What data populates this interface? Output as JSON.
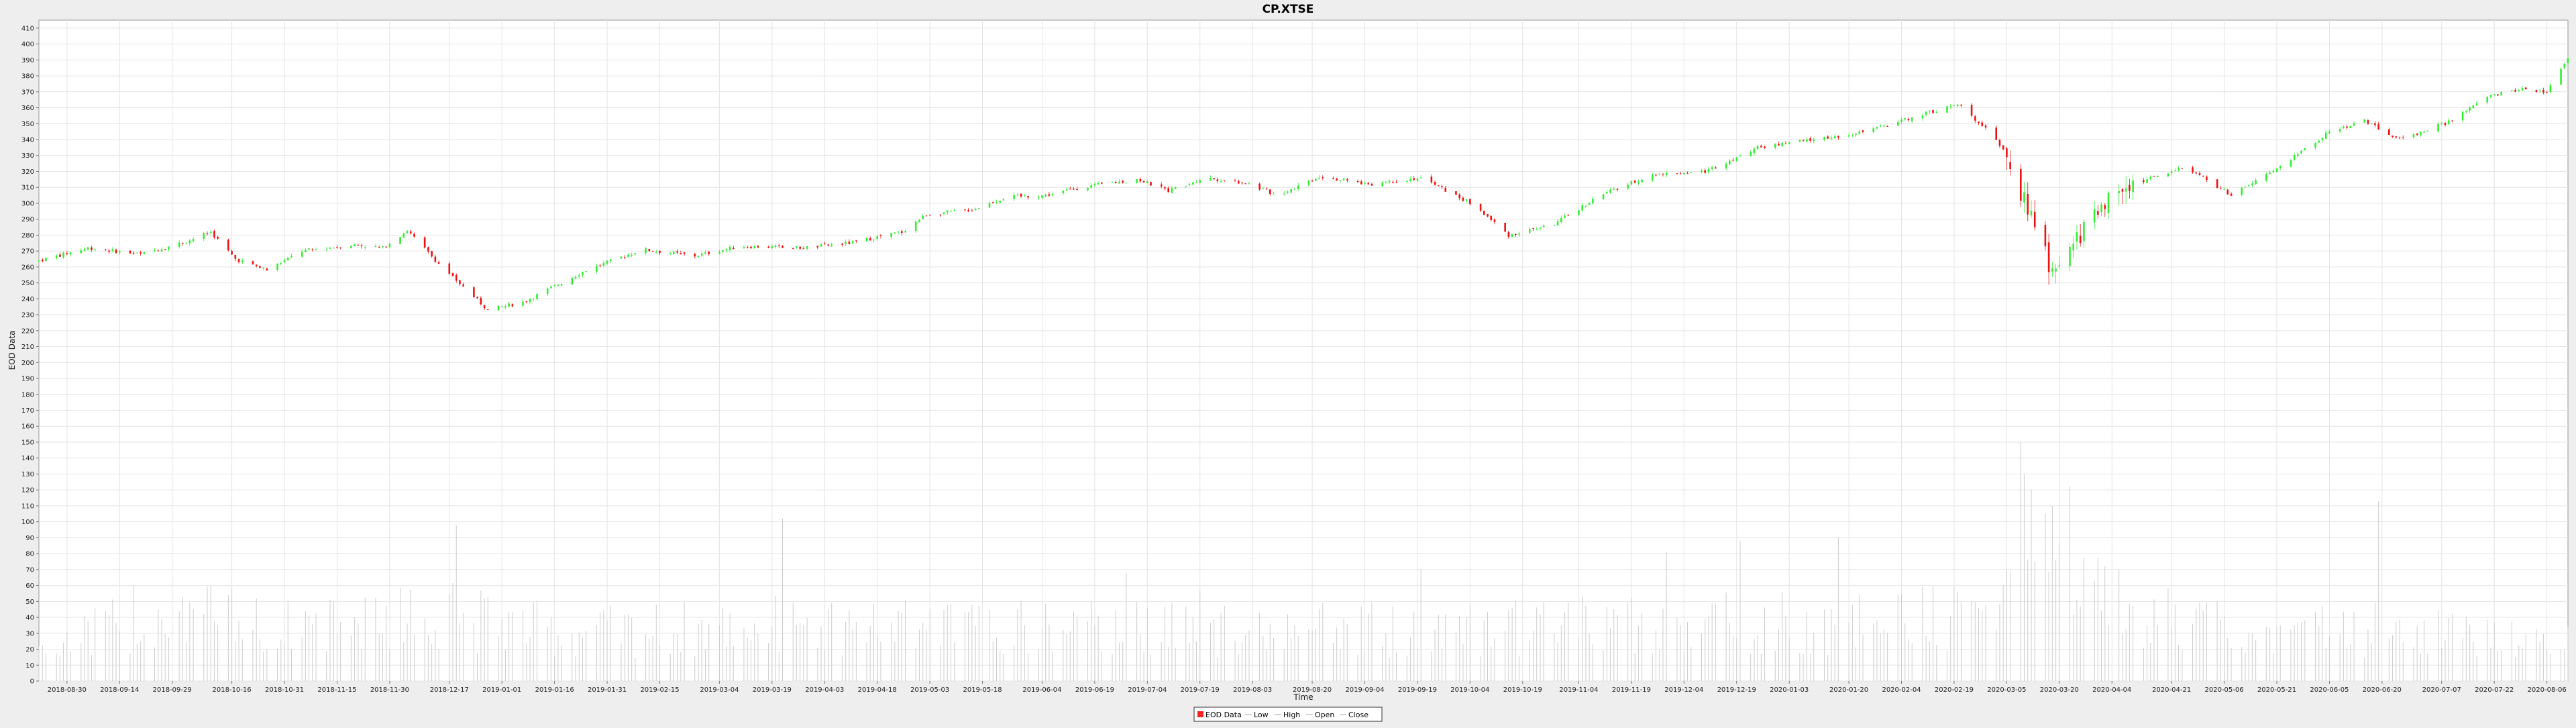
{
  "chart_data": {
    "type": "candlestick",
    "title": "CP.XTSE",
    "xlabel": "Time",
    "ylabel": "EOD Data",
    "ylim": [
      0,
      415
    ],
    "y_tick_step": 10,
    "grid": true,
    "legend_position": "bottom-center",
    "legend": [
      "EOD Data",
      "Low",
      "High",
      "Open",
      "Close"
    ],
    "colors": {
      "up": "#33ee33",
      "down": "#ee1111",
      "volume": "#cccccc",
      "grid": "#e4e4e4",
      "plot_bg": "#ffffff",
      "legend_marker": "#ff2222"
    },
    "x_range": [
      "2018-08-22",
      "2020-08-12"
    ],
    "x_tick_labels": [
      "2018-08-30",
      "2018-09-14",
      "2018-09-29",
      "2018-10-16",
      "2018-10-31",
      "2018-11-15",
      "2018-11-30",
      "2018-12-17",
      "2019-01-01",
      "2019-01-16",
      "2019-01-31",
      "2019-02-15",
      "2019-03-04",
      "2019-03-19",
      "2019-04-03",
      "2019-04-18",
      "2019-05-03",
      "2019-05-18",
      "2019-06-04",
      "2019-06-19",
      "2019-07-04",
      "2019-07-19",
      "2019-08-03",
      "2019-08-20",
      "2019-09-04",
      "2019-09-19",
      "2019-10-04",
      "2019-10-19",
      "2019-11-04",
      "2019-11-19",
      "2019-12-04",
      "2019-12-19",
      "2020-01-03",
      "2020-01-20",
      "2020-02-04",
      "2020-02-19",
      "2020-03-05",
      "2020-03-20",
      "2020-04-04",
      "2020-04-21",
      "2020-05-06",
      "2020-05-21",
      "2020-06-05",
      "2020-06-20",
      "2020-07-07",
      "2020-07-22",
      "2020-08-06"
    ],
    "close_anchors": [
      [
        "2018-08-22",
        264
      ],
      [
        "2018-09-05",
        272
      ],
      [
        "2018-09-20",
        268
      ],
      [
        "2018-10-03",
        276
      ],
      [
        "2018-10-10",
        282
      ],
      [
        "2018-10-17",
        265
      ],
      [
        "2018-10-26",
        258
      ],
      [
        "2018-11-05",
        270
      ],
      [
        "2018-11-20",
        274
      ],
      [
        "2018-11-28",
        272
      ],
      [
        "2018-12-05",
        283
      ],
      [
        "2018-12-14",
        262
      ],
      [
        "2018-12-28",
        233
      ],
      [
        "2019-01-07",
        238
      ],
      [
        "2019-01-25",
        258
      ],
      [
        "2019-02-10",
        271
      ],
      [
        "2019-02-25",
        267
      ],
      [
        "2019-03-10",
        273
      ],
      [
        "2019-03-28",
        272
      ],
      [
        "2019-04-10",
        275
      ],
      [
        "2019-04-25",
        282
      ],
      [
        "2019-05-02",
        293
      ],
      [
        "2019-05-15",
        296
      ],
      [
        "2019-05-25",
        304
      ],
      [
        "2019-06-05",
        305
      ],
      [
        "2019-06-15",
        310
      ],
      [
        "2019-07-01",
        315
      ],
      [
        "2019-07-10",
        308
      ],
      [
        "2019-07-20",
        316
      ],
      [
        "2019-08-01",
        313
      ],
      [
        "2019-08-10",
        305
      ],
      [
        "2019-08-22",
        317
      ],
      [
        "2019-09-05",
        312
      ],
      [
        "2019-09-20",
        316
      ],
      [
        "2019-10-05",
        299
      ],
      [
        "2019-10-15",
        280
      ],
      [
        "2019-10-28",
        287
      ],
      [
        "2019-11-10",
        305
      ],
      [
        "2019-11-25",
        318
      ],
      [
        "2019-12-10",
        320
      ],
      [
        "2019-12-25",
        335
      ],
      [
        "2020-01-10",
        340
      ],
      [
        "2020-01-25",
        345
      ],
      [
        "2020-02-10",
        356
      ],
      [
        "2020-02-20",
        362
      ],
      [
        "2020-03-01",
        344
      ],
      [
        "2020-03-06",
        325
      ],
      [
        "2020-03-11",
        295
      ],
      [
        "2020-03-17",
        262
      ],
      [
        "2020-03-23",
        270
      ],
      [
        "2020-03-31",
        298
      ],
      [
        "2020-04-10",
        312
      ],
      [
        "2020-04-25",
        323
      ],
      [
        "2020-05-08",
        305
      ],
      [
        "2020-05-20",
        320
      ],
      [
        "2020-06-05",
        345
      ],
      [
        "2020-06-15",
        352
      ],
      [
        "2020-06-25",
        340
      ],
      [
        "2020-07-10",
        352
      ],
      [
        "2020-07-20",
        367
      ],
      [
        "2020-07-30",
        372
      ],
      [
        "2020-08-06",
        370
      ],
      [
        "2020-08-12",
        392
      ]
    ],
    "volume_anchors": [
      [
        "2018-08-22",
        22
      ],
      [
        "2018-09-10",
        32
      ],
      [
        "2018-09-28",
        48
      ],
      [
        "2018-10-15",
        38
      ],
      [
        "2018-11-05",
        33
      ],
      [
        "2018-12-14",
        42
      ],
      [
        "2019-01-20",
        30
      ],
      [
        "2019-03-20",
        35
      ],
      [
        "2019-05-20",
        33
      ],
      [
        "2019-08-01",
        32
      ],
      [
        "2019-10-10",
        32
      ],
      [
        "2019-12-15",
        38
      ],
      [
        "2020-02-01",
        35
      ],
      [
        "2020-03-01",
        46
      ],
      [
        "2020-03-15",
        70
      ],
      [
        "2020-04-01",
        50
      ],
      [
        "2020-05-01",
        33
      ],
      [
        "2020-07-01",
        32
      ],
      [
        "2020-08-12",
        30
      ]
    ],
    "volume_spikes": [
      [
        "2018-12-19",
        98
      ],
      [
        "2019-03-22",
        102
      ],
      [
        "2019-06-28",
        68
      ],
      [
        "2019-07-19",
        57
      ],
      [
        "2019-09-20",
        70
      ],
      [
        "2019-11-29",
        81
      ],
      [
        "2019-12-20",
        88
      ],
      [
        "2020-01-17",
        90
      ],
      [
        "2020-03-09",
        150
      ],
      [
        "2020-03-10",
        130
      ],
      [
        "2020-03-12",
        120
      ],
      [
        "2020-03-16",
        105
      ],
      [
        "2020-03-18",
        110
      ],
      [
        "2020-03-23",
        122
      ],
      [
        "2020-06-19",
        113
      ]
    ]
  }
}
